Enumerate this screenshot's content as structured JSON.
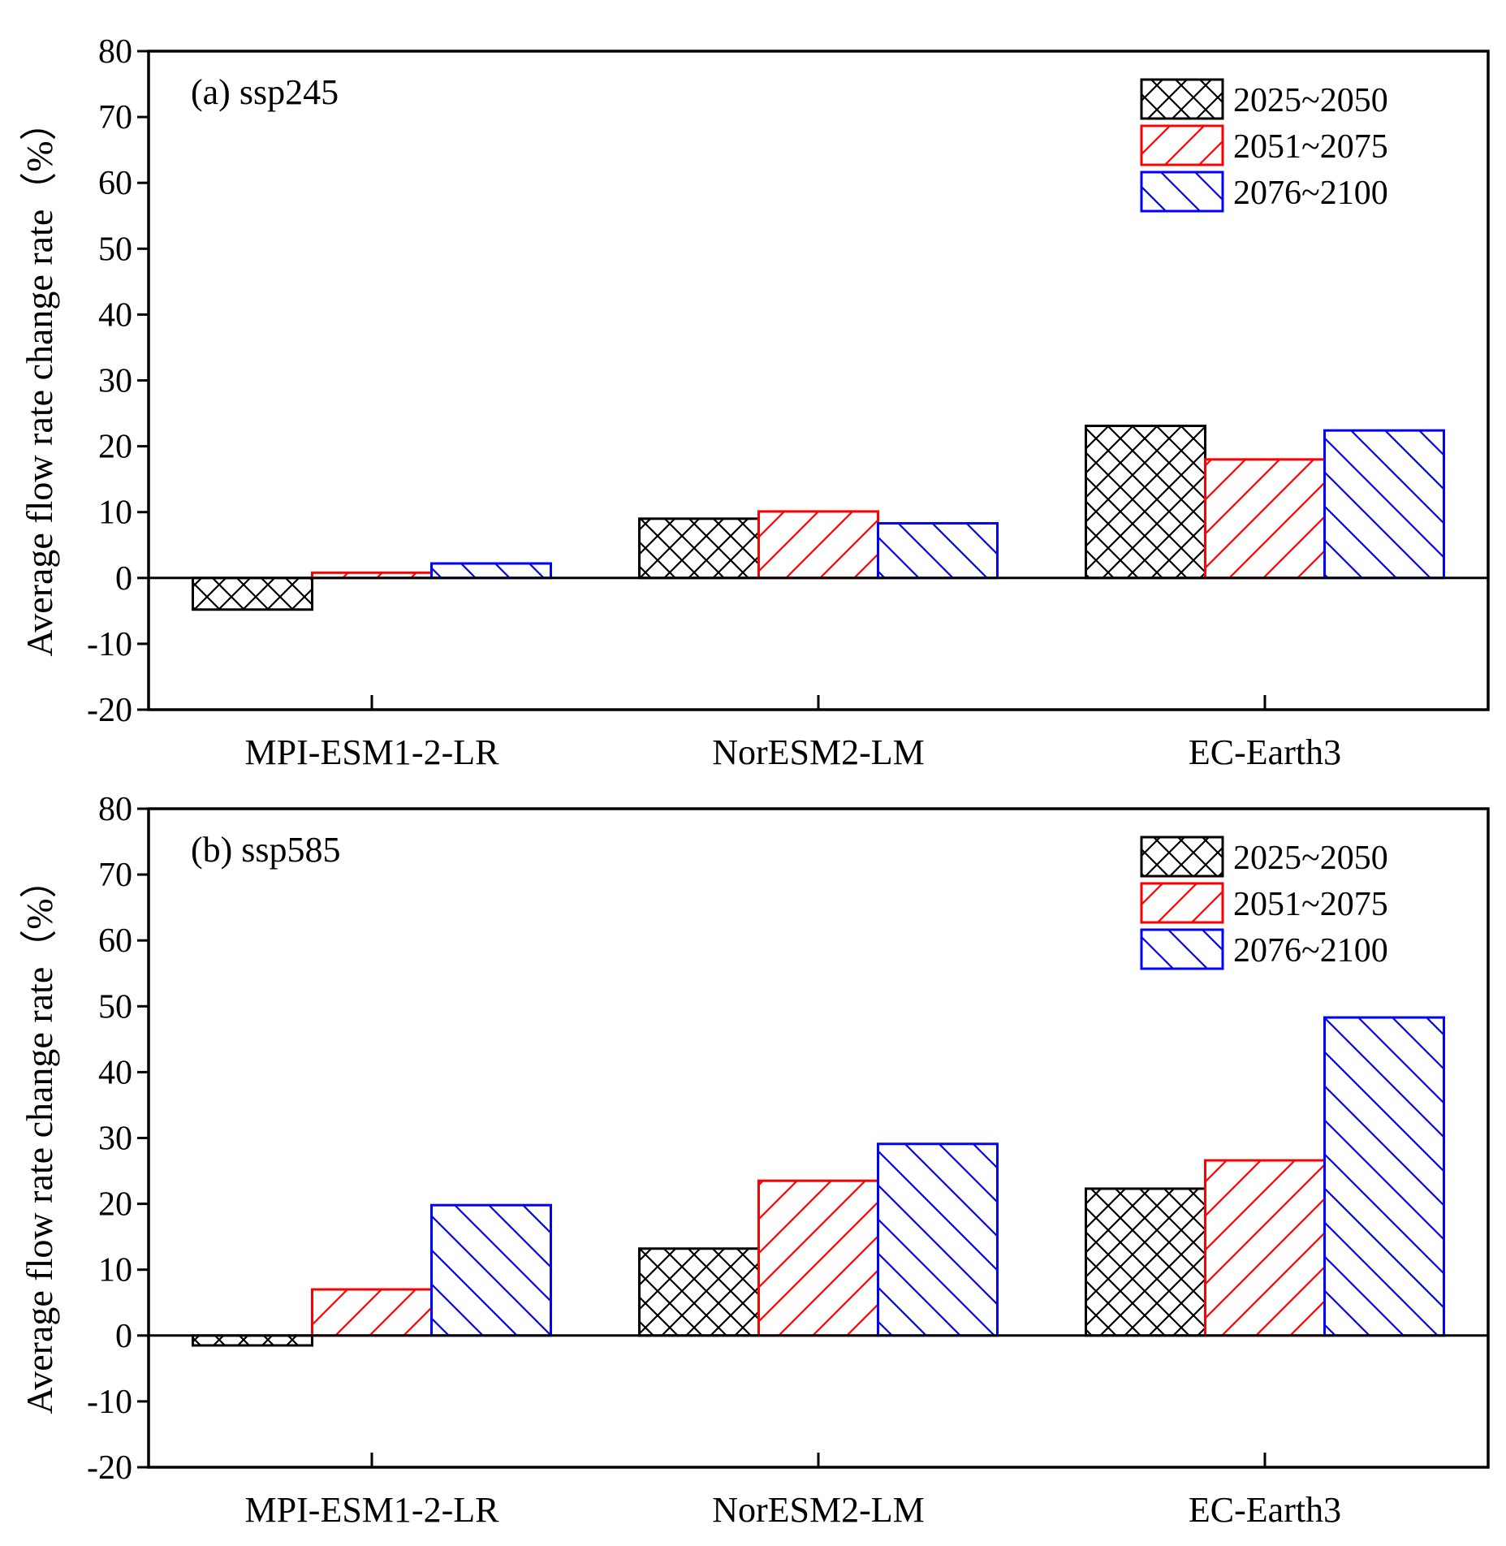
{
  "chart_data": [
    {
      "type": "bar",
      "title": "(a) ssp245",
      "xlabel": "",
      "ylabel": "Average flow rate change rate（%）",
      "categories": [
        "MPI-ESM1-2-LR",
        "NorESM2-LM",
        "EC-Earth3"
      ],
      "ylim": [
        -20,
        80
      ],
      "yticks": [
        -20,
        -10,
        0,
        10,
        20,
        30,
        40,
        50,
        60,
        70,
        80
      ],
      "legend_position": "top-right",
      "series": [
        {
          "name": "2025~2050",
          "color": "#000000",
          "pattern": "crosshatch",
          "values": [
            -4.8,
            9.0,
            23.1
          ]
        },
        {
          "name": "2051~2075",
          "color": "#ff0000",
          "pattern": "forward-diagonal",
          "values": [
            0.8,
            10.1,
            18.0
          ]
        },
        {
          "name": "2076~2100",
          "color": "#0000ff",
          "pattern": "backward-diagonal",
          "values": [
            2.2,
            8.3,
            22.4
          ]
        }
      ]
    },
    {
      "type": "bar",
      "title": "(b) ssp585",
      "xlabel": "",
      "ylabel": "Average flow rate change rate（%）",
      "categories": [
        "MPI-ESM1-2-LR",
        "NorESM2-LM",
        "EC-Earth3"
      ],
      "ylim": [
        -20,
        80
      ],
      "yticks": [
        -20,
        -10,
        0,
        10,
        20,
        30,
        40,
        50,
        60,
        70,
        80
      ],
      "legend_position": "top-right",
      "series": [
        {
          "name": "2025~2050",
          "color": "#000000",
          "pattern": "crosshatch",
          "values": [
            -1.5,
            13.2,
            22.3
          ]
        },
        {
          "name": "2051~2075",
          "color": "#ff0000",
          "pattern": "forward-diagonal",
          "values": [
            7.0,
            23.5,
            26.6
          ]
        },
        {
          "name": "2076~2100",
          "color": "#0000ff",
          "pattern": "backward-diagonal",
          "values": [
            19.8,
            29.1,
            48.3
          ]
        }
      ]
    }
  ]
}
